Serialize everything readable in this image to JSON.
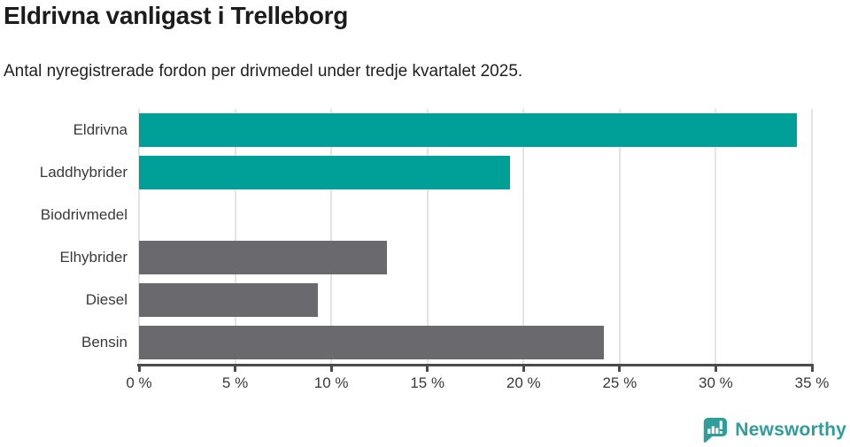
{
  "chart_data": {
    "type": "bar",
    "orientation": "horizontal",
    "title": "Eldrivna vanligast i Trelleborg",
    "subtitle": "Antal nyregistrerade fordon per drivmedel under tredje kvartalet 2025.",
    "categories": [
      "Eldrivna",
      "Laddhybrider",
      "Biodrivmedel",
      "Elhybrider",
      "Diesel",
      "Bensin"
    ],
    "values": [
      34.2,
      19.3,
      0,
      12.9,
      9.3,
      24.2
    ],
    "bar_colors": [
      "#00a099",
      "#00a099",
      "#6a6a6e",
      "#6a6a6e",
      "#6a6a6e",
      "#6a6a6e"
    ],
    "xlabel": "",
    "ylabel": "",
    "xlim": [
      0,
      35
    ],
    "x_ticks": [
      0,
      5,
      10,
      15,
      20,
      25,
      30,
      35
    ],
    "x_tick_labels": [
      "0 %",
      "5 %",
      "10 %",
      "15 %",
      "20 %",
      "25 %",
      "30 %",
      "35 %"
    ],
    "grid": true,
    "legend": false,
    "accent_color": "#00a099",
    "neutral_color": "#6a6a6e"
  },
  "footer": {
    "brand": "Newsworthy",
    "brand_color": "#2f9d9a"
  }
}
